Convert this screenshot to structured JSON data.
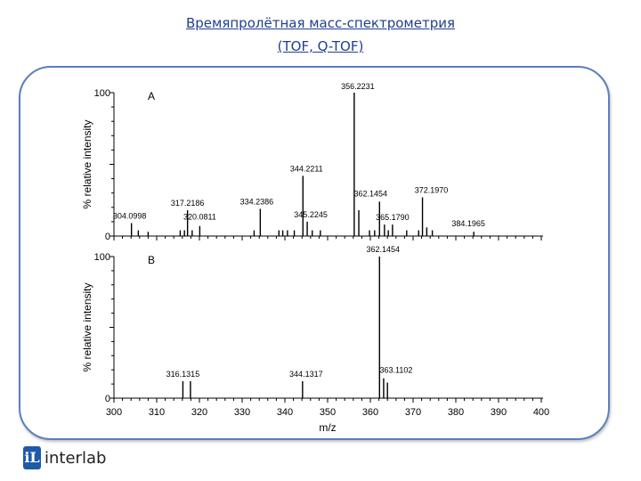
{
  "slide": {
    "title_line1": "Времяпролётная масс-спектрометрия",
    "title_line2": "(TOF, Q-TOF)"
  },
  "logo": {
    "text": "interlab",
    "mark_text": "iL",
    "mark_color": "#1f5aa8"
  },
  "chart_data": [
    {
      "type": "bar",
      "panel_label": "A",
      "xlabel": "",
      "ylabel": "% relative intensity",
      "xlim": [
        300,
        400
      ],
      "ylim": [
        0,
        100
      ],
      "yticks": [
        "0",
        "100"
      ],
      "peaks": [
        {
          "x": 304.0998,
          "y": 9,
          "label": "304.0998"
        },
        {
          "x": 305.7,
          "y": 4
        },
        {
          "x": 308.0,
          "y": 3
        },
        {
          "x": 315.5,
          "y": 4
        },
        {
          "x": 316.5,
          "y": 4
        },
        {
          "x": 317.2186,
          "y": 18,
          "label": "317.2186"
        },
        {
          "x": 318.3,
          "y": 4
        },
        {
          "x": 320.0811,
          "y": 7,
          "label": "320.0811"
        },
        {
          "x": 332.8,
          "y": 4
        },
        {
          "x": 334.2386,
          "y": 19,
          "label": "334.2386"
        },
        {
          "x": 338.6,
          "y": 4
        },
        {
          "x": 339.5,
          "y": 4
        },
        {
          "x": 340.6,
          "y": 4
        },
        {
          "x": 342.2,
          "y": 4
        },
        {
          "x": 344.2211,
          "y": 42,
          "label": "344.2211"
        },
        {
          "x": 345.2245,
          "y": 10,
          "label": "345.2245"
        },
        {
          "x": 346.4,
          "y": 4
        },
        {
          "x": 348.3,
          "y": 4
        },
        {
          "x": 356.2231,
          "y": 100,
          "label": "356.2231"
        },
        {
          "x": 357.3,
          "y": 18
        },
        {
          "x": 359.8,
          "y": 4
        },
        {
          "x": 361.0,
          "y": 4
        },
        {
          "x": 362.1454,
          "y": 24,
          "label": "362.1454"
        },
        {
          "x": 363.3,
          "y": 8
        },
        {
          "x": 364.2,
          "y": 4
        },
        {
          "x": 365.179,
          "y": 8,
          "label": "365.1790"
        },
        {
          "x": 368.5,
          "y": 4
        },
        {
          "x": 371.3,
          "y": 4
        },
        {
          "x": 372.197,
          "y": 27,
          "label": "372.1970"
        },
        {
          "x": 373.2,
          "y": 6
        },
        {
          "x": 374.5,
          "y": 4
        },
        {
          "x": 384.1965,
          "y": 3,
          "label": "384.1965"
        }
      ]
    },
    {
      "type": "bar",
      "panel_label": "B",
      "xlabel": "m/z",
      "ylabel": "% relative intensity",
      "xlim": [
        300,
        400
      ],
      "ylim": [
        0,
        100
      ],
      "yticks": [
        "0",
        "100"
      ],
      "xticks": [
        "300",
        "310",
        "320",
        "330",
        "340",
        "350",
        "360",
        "370",
        "380",
        "390",
        "400"
      ],
      "peaks": [
        {
          "x": 316.1315,
          "y": 12,
          "label": "316.1315"
        },
        {
          "x": 317.9,
          "y": 12
        },
        {
          "x": 344.1317,
          "y": 12,
          "label": "344.1317"
        },
        {
          "x": 362.1454,
          "y": 100,
          "label": "362.1454"
        },
        {
          "x": 363.1102,
          "y": 14,
          "label": "363.1102"
        },
        {
          "x": 364.0,
          "y": 11
        }
      ]
    }
  ]
}
